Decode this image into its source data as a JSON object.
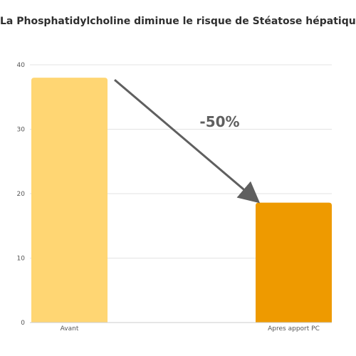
{
  "chart_data": {
    "type": "bar",
    "title": "La Phosphatidylcholine diminue le risque de Stéatose hépatique",
    "categories": [
      "Avant",
      "Apres apport PC"
    ],
    "values": [
      38,
      18.6
    ],
    "bar_colors": [
      "#FFD673",
      "#EE9A00"
    ],
    "ylim": [
      0,
      40
    ],
    "yticks": [
      0,
      10,
      20,
      30,
      40
    ],
    "grid": true,
    "legend": "none",
    "annotation": {
      "text": "-50%",
      "from_category": "Avant",
      "to_category": "Apres apport PC",
      "color": "#5f5f5f"
    }
  }
}
